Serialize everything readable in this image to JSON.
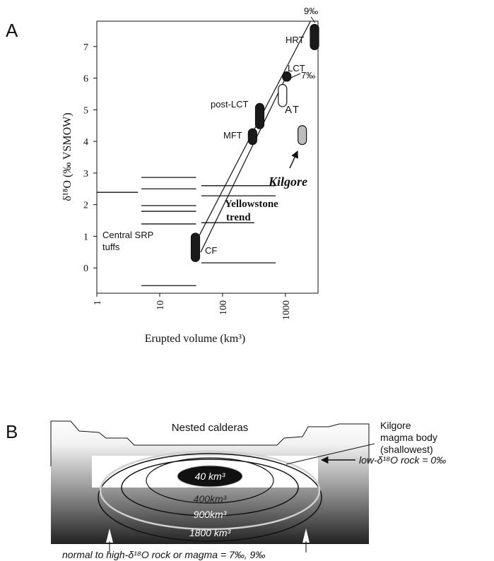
{
  "chart_data": {
    "type": "range",
    "panel": "A",
    "xlabel": "Erupted volume (km³)",
    "ylabel": "δ¹⁸O (‰ VSMOW)",
    "xlog": true,
    "xlim": [
      1,
      3300
    ],
    "ylim": [
      -0.8,
      7.8
    ],
    "xticks": [
      1,
      10,
      100,
      1000
    ],
    "yticks": [
      0,
      1,
      2,
      3,
      4,
      5,
      6,
      7
    ],
    "segments": {
      "color": "#111111",
      "x_start": [
        1,
        5.1,
        5.1,
        5.1,
        5.1,
        5.1,
        5.1,
        46,
        46,
        46,
        46
      ],
      "x_end": [
        4.5,
        38,
        38,
        38,
        38,
        38,
        38,
        700,
        700,
        320,
        700
      ],
      "values": [
        2.39,
        2.86,
        2.5,
        1.97,
        1.79,
        1.39,
        -0.56,
        2.6,
        2.28,
        1.43,
        0.16
      ]
    },
    "ranges": [
      {
        "name": "CF",
        "color": "#1a1a1a",
        "x": 37,
        "low": 0.2,
        "high": 1.1
      },
      {
        "name": "MFT",
        "color": "#1a1a1a",
        "x": 300,
        "low": 3.9,
        "high": 4.4
      },
      {
        "name": "post-LCT",
        "color": "#1a1a1a",
        "x": 390,
        "low": 4.4,
        "high": 5.2
      },
      {
        "name": "LCT",
        "color": "#1a1a1a",
        "x": 1050,
        "low": 5.9,
        "high": 6.2
      },
      {
        "name": "HRT",
        "color": "#1a1a1a",
        "x": 2900,
        "low": 6.9,
        "high": 7.7
      },
      {
        "name": "AT",
        "color": "#ffffff",
        "x": 900,
        "low": 5.1,
        "high": 5.8
      },
      {
        "name": "Kilgore",
        "color": "#bdbdbd",
        "x": 1850,
        "low": 3.9,
        "high": 4.5
      }
    ],
    "trends": [
      {
        "x": [
          42,
          2500
        ],
        "values": [
          1.0,
          7.8
        ]
      },
      {
        "x": [
          45,
          1000
        ],
        "values": [
          0.5,
          6.0
        ]
      }
    ],
    "annotations": [
      "9‰",
      "7‰",
      "Yellowstone",
      "trend",
      "Central SRP",
      "tuffs"
    ]
  },
  "diagram": {
    "label": "B",
    "caldera_label": "Nested calderas",
    "kilgore_label": [
      "Kilgore",
      "magma body",
      "(shallowest)"
    ],
    "volumes": [
      "40 km³",
      "400km³",
      "900km³",
      "1800 km³"
    ],
    "low_rock": "low-δ¹⁸O rock = 0‰",
    "normal_rock": "normal to high-δ¹⁸O rock or magma = 7‰, 9‰"
  }
}
